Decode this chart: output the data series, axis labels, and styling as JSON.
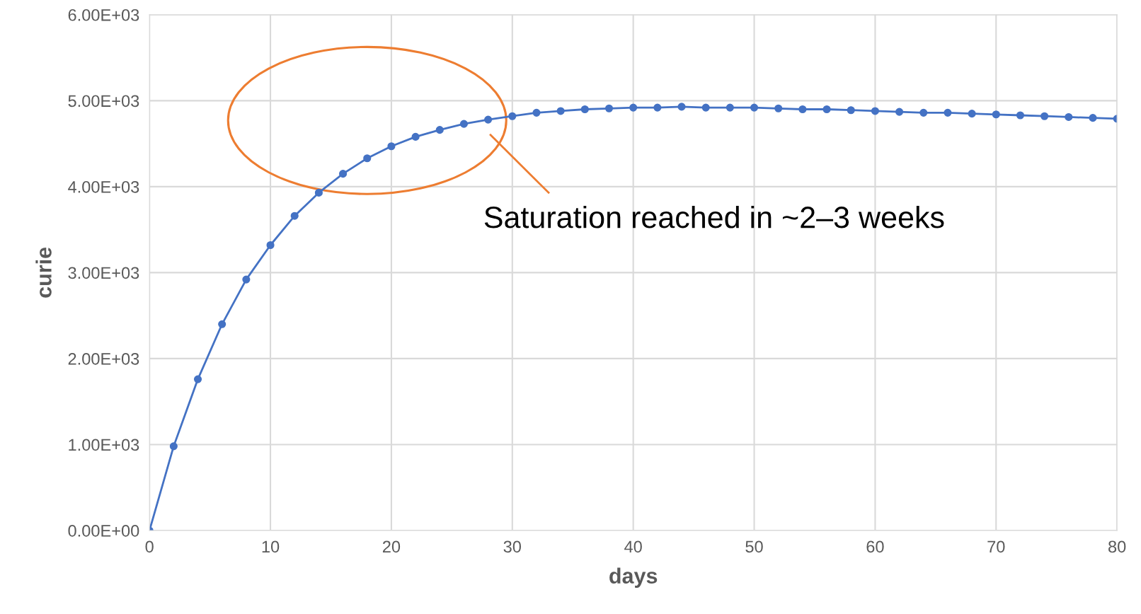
{
  "chart_data": {
    "type": "line",
    "xlabel": "days",
    "ylabel": "curie",
    "x": [
      0,
      2,
      4,
      6,
      8,
      10,
      12,
      14,
      16,
      18,
      20,
      22,
      24,
      26,
      28,
      30,
      32,
      34,
      36,
      38,
      40,
      42,
      44,
      46,
      48,
      50,
      52,
      54,
      56,
      58,
      60,
      62,
      64,
      66,
      68,
      70,
      72,
      74,
      76,
      78,
      80
    ],
    "series": [
      {
        "color": "#4472c4",
        "values": [
          0,
          980,
          1760,
          2400,
          2920,
          3320,
          3660,
          3930,
          4150,
          4330,
          4470,
          4580,
          4660,
          4730,
          4780,
          4820,
          4860,
          4880,
          4900,
          4910,
          4920,
          4920,
          4930,
          4920,
          4920,
          4920,
          4910,
          4900,
          4900,
          4890,
          4880,
          4870,
          4860,
          4860,
          4850,
          4840,
          4830,
          4820,
          4810,
          4800,
          4790
        ]
      }
    ],
    "xlim": [
      0,
      80
    ],
    "xticks": [
      0,
      10,
      20,
      30,
      40,
      50,
      60,
      70,
      80
    ],
    "ylim": [
      0,
      6000
    ],
    "yticks": [
      {
        "value": 0,
        "label": "0.00E+00"
      },
      {
        "value": 1000,
        "label": "1.00E+03"
      },
      {
        "value": 2000,
        "label": "2.00E+03"
      },
      {
        "value": 3000,
        "label": "3.00E+03"
      },
      {
        "value": 4000,
        "label": "4.00E+03"
      },
      {
        "value": 5000,
        "label": "5.00E+03"
      },
      {
        "value": 6000,
        "label": "6.00E+03"
      }
    ],
    "annotations": [
      "Saturation reached in ~2–3 weeks"
    ],
    "grid": true,
    "marker": "circle",
    "line_style": "solid",
    "legend": false
  }
}
